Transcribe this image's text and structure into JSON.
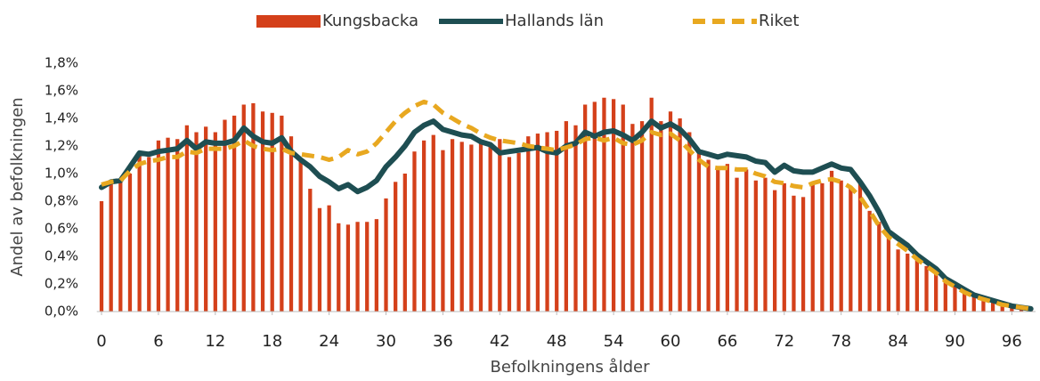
{
  "chart_data": {
    "type": "bar",
    "x_label": "Befolkningens ålder",
    "y_label": "Andel av befolkningen",
    "x": [
      0,
      1,
      2,
      3,
      4,
      5,
      6,
      7,
      8,
      9,
      10,
      11,
      12,
      13,
      14,
      15,
      16,
      17,
      18,
      19,
      20,
      21,
      22,
      23,
      24,
      25,
      26,
      27,
      28,
      29,
      30,
      31,
      32,
      33,
      34,
      35,
      36,
      37,
      38,
      39,
      40,
      41,
      42,
      43,
      44,
      45,
      46,
      47,
      48,
      49,
      50,
      51,
      52,
      53,
      54,
      55,
      56,
      57,
      58,
      59,
      60,
      61,
      62,
      63,
      64,
      65,
      66,
      67,
      68,
      69,
      70,
      71,
      72,
      73,
      74,
      75,
      76,
      77,
      78,
      79,
      80,
      81,
      82,
      83,
      84,
      85,
      86,
      87,
      88,
      89,
      90,
      91,
      92,
      93,
      94,
      95,
      96,
      97,
      98
    ],
    "xlim": [
      -0.5,
      98.5
    ],
    "xticks": [
      0,
      6,
      12,
      18,
      24,
      30,
      36,
      42,
      48,
      54,
      60,
      66,
      72,
      78,
      84,
      90,
      96
    ],
    "ylim": [
      0,
      1.8
    ],
    "yticks": [
      {
        "value": 0,
        "label": "0,0%"
      },
      {
        "value": 0.2,
        "label": "0,2%"
      },
      {
        "value": 0.4,
        "label": "0,4%"
      },
      {
        "value": 0.6,
        "label": "0,6%"
      },
      {
        "value": 0.8,
        "label": "0,8%"
      },
      {
        "value": 1.0,
        "label": "1,0%"
      },
      {
        "value": 1.2,
        "label": "1,2%"
      },
      {
        "value": 1.4,
        "label": "1,4%"
      },
      {
        "value": 1.6,
        "label": "1,6%"
      },
      {
        "value": 1.8,
        "label": "1,8%"
      }
    ],
    "legend": "top",
    "series": [
      {
        "name": "Kungsbacka",
        "type": "bar",
        "color": "#d4401a",
        "values": [
          0.8,
          0.93,
          0.95,
          1.0,
          1.13,
          1.12,
          1.24,
          1.26,
          1.25,
          1.35,
          1.3,
          1.34,
          1.3,
          1.39,
          1.42,
          1.5,
          1.51,
          1.45,
          1.44,
          1.42,
          1.27,
          1.1,
          0.89,
          0.75,
          0.77,
          0.64,
          0.63,
          0.65,
          0.65,
          0.67,
          0.82,
          0.94,
          1.0,
          1.16,
          1.24,
          1.28,
          1.17,
          1.25,
          1.23,
          1.21,
          1.23,
          1.2,
          1.25,
          1.12,
          1.15,
          1.27,
          1.29,
          1.3,
          1.31,
          1.38,
          1.35,
          1.5,
          1.52,
          1.55,
          1.54,
          1.5,
          1.36,
          1.38,
          1.55,
          1.38,
          1.45,
          1.4,
          1.3,
          1.15,
          1.1,
          1.03,
          1.07,
          0.97,
          1.03,
          0.95,
          0.97,
          0.88,
          0.93,
          0.84,
          0.83,
          0.93,
          0.93,
          1.02,
          0.95,
          0.91,
          0.95,
          0.73,
          0.65,
          0.56,
          0.45,
          0.42,
          0.4,
          0.33,
          0.29,
          0.25,
          0.2,
          0.16,
          0.13,
          0.1,
          0.09,
          0.07,
          0.05,
          0.04,
          0.03
        ]
      },
      {
        "name": "Hallands län",
        "type": "line",
        "color": "#1e4e52",
        "values": [
          0.9,
          0.94,
          0.95,
          1.05,
          1.15,
          1.14,
          1.16,
          1.17,
          1.18,
          1.24,
          1.18,
          1.23,
          1.22,
          1.22,
          1.24,
          1.33,
          1.27,
          1.23,
          1.22,
          1.26,
          1.16,
          1.1,
          1.05,
          0.98,
          0.94,
          0.89,
          0.92,
          0.87,
          0.9,
          0.95,
          1.05,
          1.12,
          1.2,
          1.3,
          1.35,
          1.38,
          1.32,
          1.3,
          1.28,
          1.27,
          1.23,
          1.21,
          1.15,
          1.16,
          1.17,
          1.18,
          1.19,
          1.16,
          1.15,
          1.2,
          1.22,
          1.3,
          1.27,
          1.3,
          1.31,
          1.28,
          1.24,
          1.3,
          1.38,
          1.33,
          1.36,
          1.32,
          1.25,
          1.16,
          1.14,
          1.12,
          1.14,
          1.13,
          1.12,
          1.09,
          1.08,
          1.01,
          1.06,
          1.02,
          1.01,
          1.01,
          1.04,
          1.07,
          1.04,
          1.03,
          0.94,
          0.84,
          0.72,
          0.58,
          0.53,
          0.48,
          0.41,
          0.36,
          0.31,
          0.24,
          0.2,
          0.16,
          0.12,
          0.1,
          0.08,
          0.06,
          0.04,
          0.03,
          0.02
        ]
      },
      {
        "name": "Riket",
        "type": "line",
        "dashed": true,
        "color": "#e8a820",
        "values": [
          0.92,
          0.94,
          0.95,
          1.02,
          1.07,
          1.09,
          1.1,
          1.12,
          1.12,
          1.16,
          1.15,
          1.18,
          1.18,
          1.18,
          1.2,
          1.24,
          1.2,
          1.18,
          1.17,
          1.18,
          1.15,
          1.14,
          1.13,
          1.12,
          1.1,
          1.12,
          1.17,
          1.14,
          1.16,
          1.22,
          1.3,
          1.38,
          1.44,
          1.49,
          1.52,
          1.5,
          1.44,
          1.4,
          1.36,
          1.33,
          1.29,
          1.26,
          1.24,
          1.23,
          1.22,
          1.2,
          1.19,
          1.18,
          1.17,
          1.19,
          1.21,
          1.25,
          1.26,
          1.24,
          1.26,
          1.22,
          1.21,
          1.24,
          1.3,
          1.28,
          1.29,
          1.24,
          1.17,
          1.1,
          1.05,
          1.04,
          1.04,
          1.03,
          1.03,
          1.0,
          0.98,
          0.94,
          0.93,
          0.91,
          0.9,
          0.93,
          0.95,
          0.96,
          0.94,
          0.9,
          0.83,
          0.73,
          0.62,
          0.54,
          0.49,
          0.44,
          0.38,
          0.33,
          0.28,
          0.22,
          0.18,
          0.14,
          0.11,
          0.09,
          0.07,
          0.05,
          0.04,
          0.03,
          0.02
        ]
      }
    ]
  }
}
